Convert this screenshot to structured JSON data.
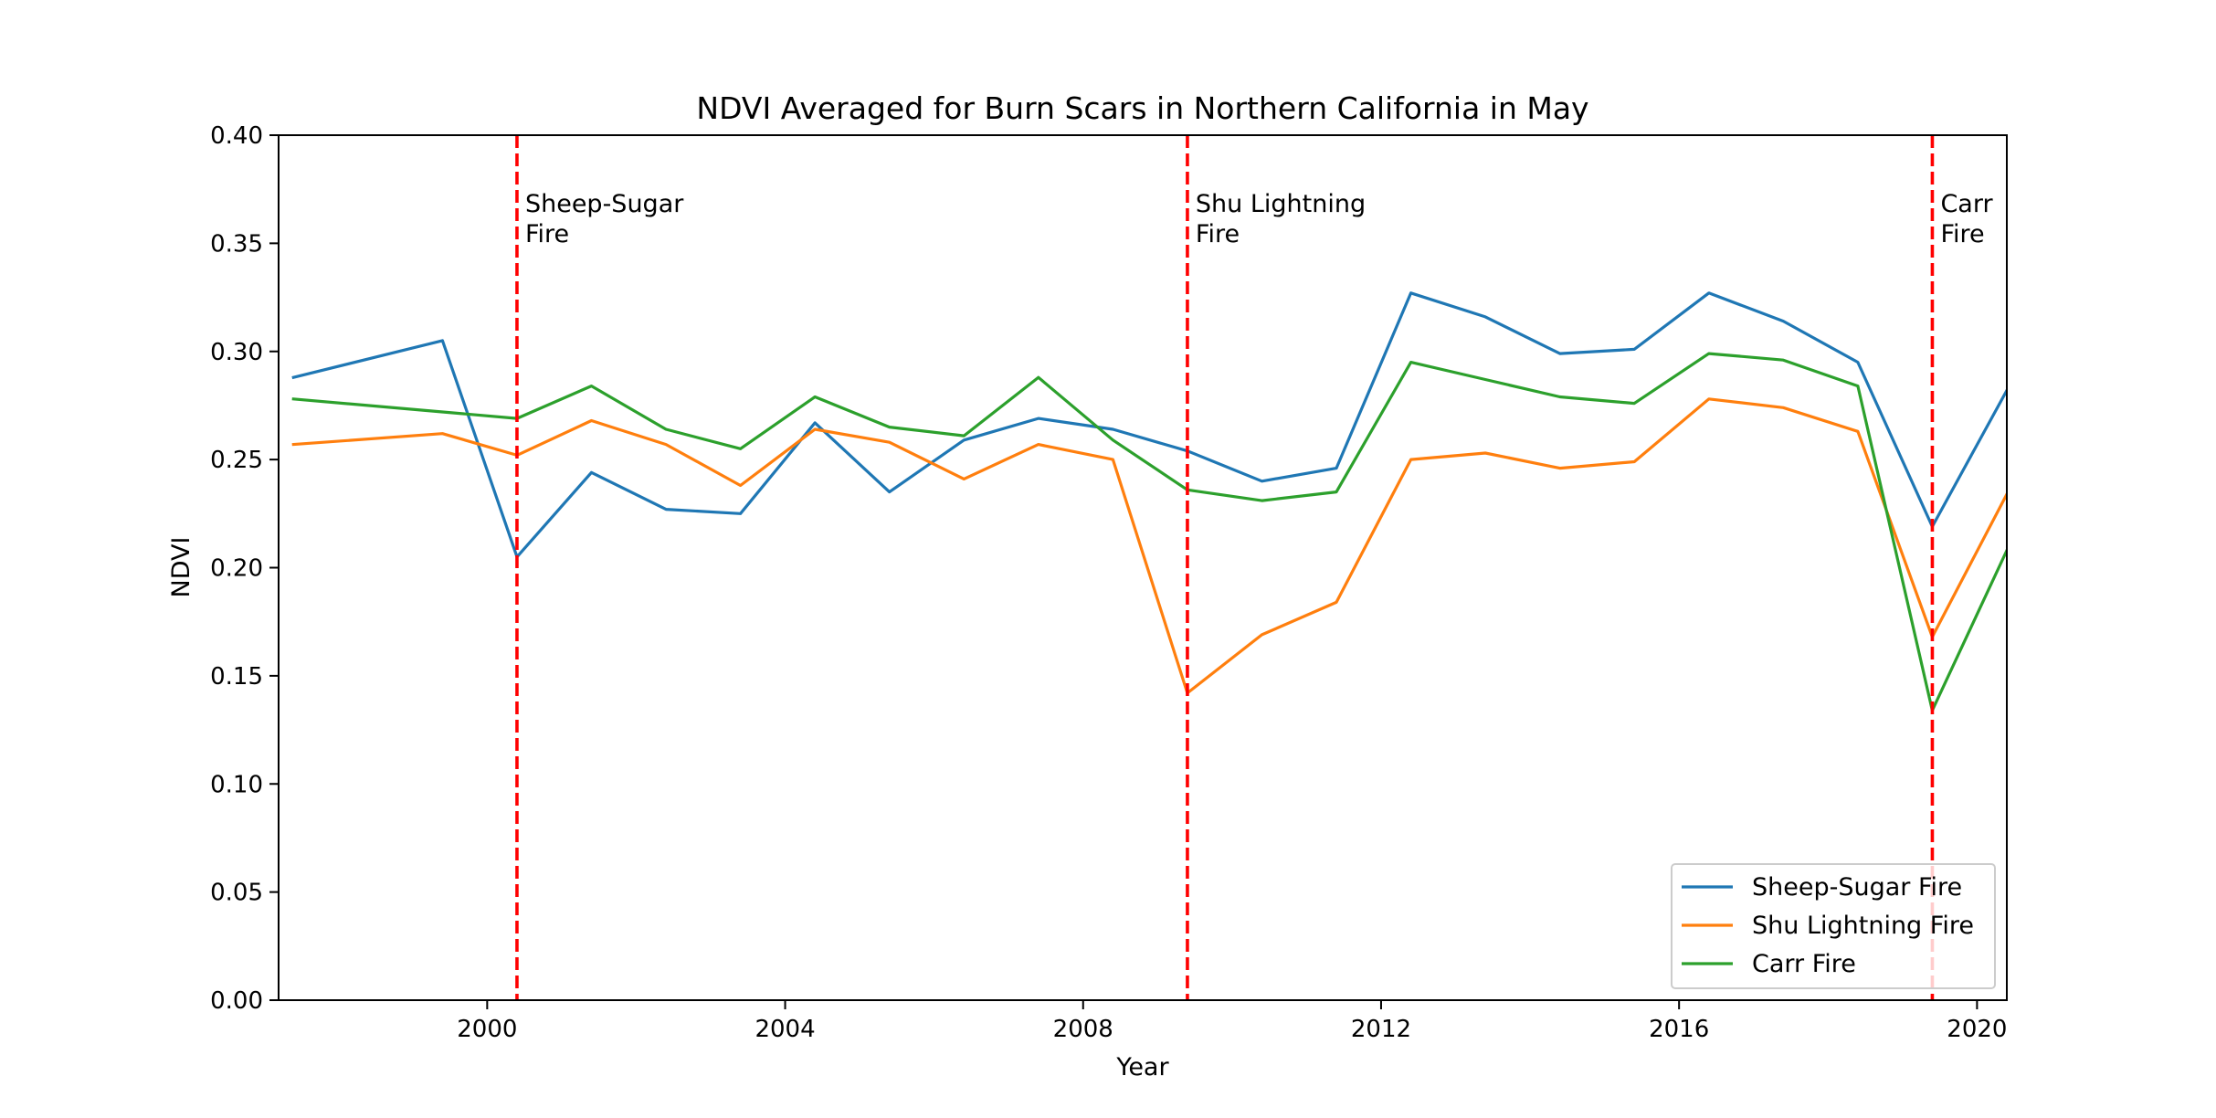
{
  "chart_data": {
    "type": "line",
    "title": "NDVI Averaged for Burn Scars in Northern California in May",
    "xlabel": "Year",
    "ylabel": "NDVI",
    "xlim": [
      1997.2,
      2020.4
    ],
    "ylim": [
      0.0,
      0.4
    ],
    "xticks": [
      2000,
      2004,
      2008,
      2012,
      2016,
      2020
    ],
    "xtick_labels": [
      "2000",
      "2004",
      "2008",
      "2012",
      "2016",
      "2020"
    ],
    "yticks": [
      0.0,
      0.05,
      0.1,
      0.15,
      0.2,
      0.25,
      0.3,
      0.35,
      0.4
    ],
    "ytick_labels": [
      "0.00",
      "0.05",
      "0.10",
      "0.15",
      "0.20",
      "0.25",
      "0.30",
      "0.35",
      "0.40"
    ],
    "grid": false,
    "legend_position": "lower-right",
    "x": [
      1997.4,
      1999.4,
      2000.4,
      2001.4,
      2002.4,
      2003.4,
      2004.4,
      2005.4,
      2006.4,
      2007.4,
      2008.4,
      2009.4,
      2010.4,
      2011.4,
      2012.4,
      2013.4,
      2014.4,
      2015.4,
      2016.4,
      2017.4,
      2018.4,
      2019.4,
      2020.4
    ],
    "series": [
      {
        "name": "Sheep-Sugar Fire",
        "color": "#1f77b4",
        "values": [
          0.288,
          0.305,
          0.205,
          0.244,
          0.227,
          0.225,
          0.267,
          0.235,
          0.259,
          0.269,
          0.264,
          0.254,
          0.24,
          0.246,
          0.327,
          0.316,
          0.299,
          0.301,
          0.327,
          0.314,
          0.295,
          0.219,
          0.282
        ]
      },
      {
        "name": "Shu Lightning Fire",
        "color": "#ff7f0e",
        "values": [
          0.257,
          0.262,
          0.252,
          0.268,
          0.257,
          0.238,
          0.264,
          0.258,
          0.241,
          0.257,
          0.25,
          0.142,
          0.169,
          0.184,
          0.25,
          0.253,
          0.246,
          0.249,
          0.278,
          0.274,
          0.263,
          0.168,
          0.234
        ]
      },
      {
        "name": "Carr Fire",
        "color": "#2ca02c",
        "values": [
          0.278,
          0.272,
          0.269,
          0.284,
          0.264,
          0.255,
          0.279,
          0.265,
          0.261,
          0.288,
          0.259,
          0.236,
          0.231,
          0.235,
          0.295,
          0.287,
          0.279,
          0.276,
          0.299,
          0.296,
          0.284,
          0.134,
          0.208
        ]
      }
    ],
    "vlines": [
      {
        "x": 2000.4,
        "label_line1": "Sheep-Sugar",
        "label_line2": "Fire",
        "color": "#ff0000"
      },
      {
        "x": 2009.4,
        "label_line1": "Shu Lightning",
        "label_line2": "Fire",
        "color": "#ff0000"
      },
      {
        "x": 2019.4,
        "label_line1": "Carr",
        "label_line2": "Fire",
        "color": "#ff0000"
      }
    ]
  }
}
